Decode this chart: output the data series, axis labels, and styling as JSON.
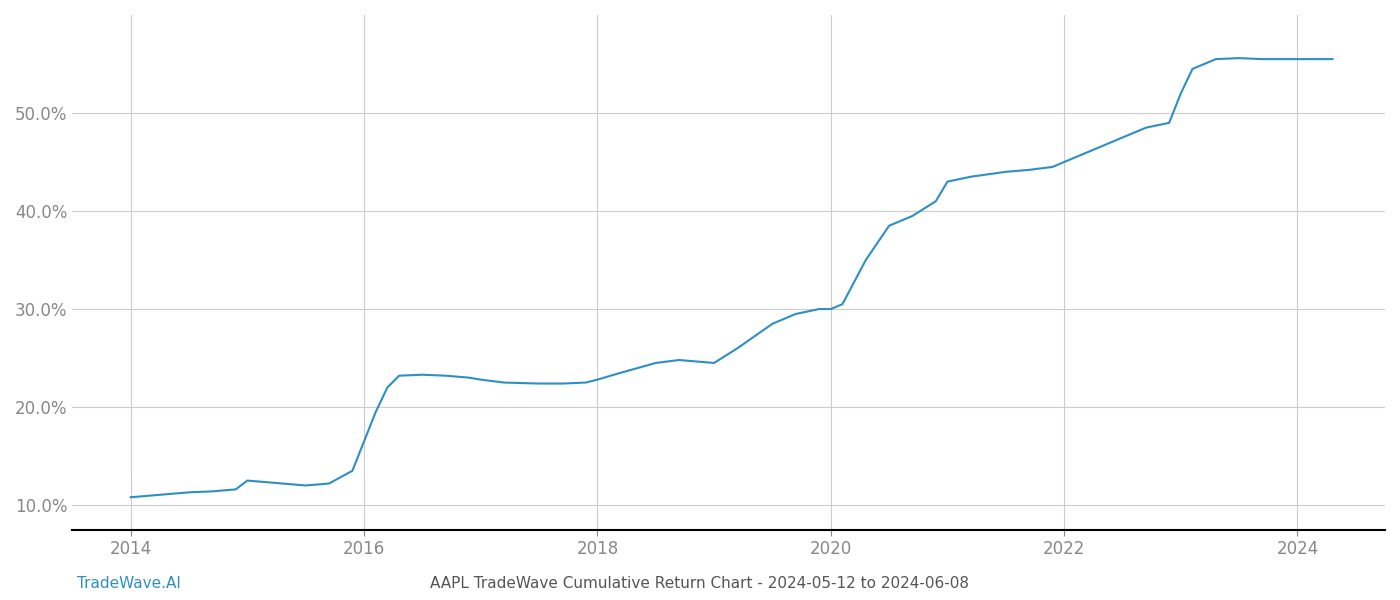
{
  "title": "AAPL TradeWave Cumulative Return Chart - 2024-05-12 to 2024-06-08",
  "watermark": "TradeWave.AI",
  "line_color": "#2d8fc4",
  "line_width": 1.5,
  "background_color": "#ffffff",
  "grid_color": "#cccccc",
  "x_data": [
    2014.0,
    2014.1,
    2014.2,
    2014.3,
    2014.5,
    2014.7,
    2014.9,
    2015.0,
    2015.2,
    2015.5,
    2015.7,
    2015.9,
    2016.0,
    2016.1,
    2016.2,
    2016.3,
    2016.5,
    2016.7,
    2016.9,
    2017.0,
    2017.2,
    2017.5,
    2017.7,
    2017.9,
    2018.0,
    2018.2,
    2018.5,
    2018.7,
    2018.9,
    2019.0,
    2019.2,
    2019.5,
    2019.7,
    2019.9,
    2020.0,
    2020.1,
    2020.3,
    2020.5,
    2020.7,
    2020.9,
    2021.0,
    2021.2,
    2021.5,
    2021.7,
    2021.9,
    2022.0,
    2022.2,
    2022.5,
    2022.7,
    2022.9,
    2023.0,
    2023.1,
    2023.3,
    2023.5,
    2023.7,
    2024.0,
    2024.3
  ],
  "y_data": [
    10.8,
    10.9,
    11.0,
    11.1,
    11.3,
    11.4,
    11.6,
    12.5,
    12.3,
    12.0,
    12.2,
    13.5,
    16.5,
    19.5,
    22.0,
    23.2,
    23.3,
    23.2,
    23.0,
    22.8,
    22.5,
    22.4,
    22.4,
    22.5,
    22.8,
    23.5,
    24.5,
    24.8,
    24.6,
    24.5,
    26.0,
    28.5,
    29.5,
    30.0,
    30.0,
    30.5,
    35.0,
    38.5,
    39.5,
    41.0,
    43.0,
    43.5,
    44.0,
    44.2,
    44.5,
    45.0,
    46.0,
    47.5,
    48.5,
    49.0,
    52.0,
    54.5,
    55.5,
    55.6,
    55.5,
    55.5,
    55.5
  ],
  "ylim": [
    7.5,
    60
  ],
  "xlim": [
    2013.5,
    2024.75
  ],
  "yticks": [
    10.0,
    20.0,
    30.0,
    40.0,
    50.0
  ],
  "xticks": [
    2014,
    2016,
    2018,
    2020,
    2022,
    2024
  ],
  "tick_fontsize": 12,
  "title_fontsize": 11,
  "watermark_fontsize": 11,
  "watermark_color": "#2d8fc4",
  "title_color": "#555555",
  "tick_color": "#888888",
  "spine_color": "#000000",
  "grid_linewidth": 0.8
}
